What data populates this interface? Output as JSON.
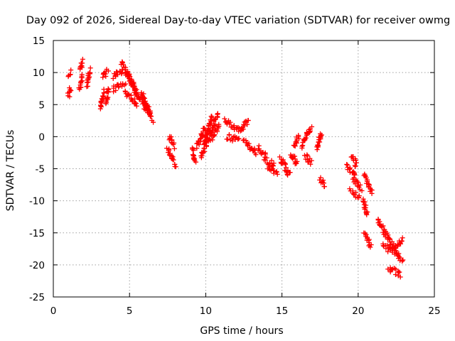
{
  "chart_data": {
    "type": "scatter",
    "title": "Day 092 of 2026, Sidereal Day-to-day VTEC variation (SDTVAR) for receiver owmg",
    "xlabel": "GPS time / hours",
    "ylabel": "SDTVAR / TECUs",
    "xlim": [
      0,
      25
    ],
    "ylim": [
      -25,
      15
    ],
    "xticks": [
      0,
      5,
      10,
      15,
      20,
      25
    ],
    "yticks": [
      -25,
      -20,
      -15,
      -10,
      -5,
      0,
      5,
      10,
      15
    ],
    "grid": true,
    "marker": "plus",
    "color": "#ff0000",
    "segments": [
      {
        "x": [
          1.0,
          1.1
        ],
        "y": [
          6.5,
          7.5
        ]
      },
      {
        "x": [
          1.0,
          1.1
        ],
        "y": [
          9.8,
          10.0
        ]
      },
      {
        "x": [
          1.7,
          1.9
        ],
        "y": [
          7.5,
          9.5
        ]
      },
      {
        "x": [
          1.8,
          1.9
        ],
        "y": [
          10.5,
          12.0
        ]
      },
      {
        "x": [
          2.2,
          2.4
        ],
        "y": [
          8.0,
          10.5
        ]
      },
      {
        "x": [
          3.1,
          3.3
        ],
        "y": [
          4.5,
          7.0
        ]
      },
      {
        "x": [
          3.2,
          3.6
        ],
        "y": [
          9.5,
          10.2
        ]
      },
      {
        "x": [
          3.5,
          3.6
        ],
        "y": [
          5.5,
          7.5
        ]
      },
      {
        "x": [
          3.9,
          4.6
        ],
        "y": [
          9.5,
          10.3
        ]
      },
      {
        "x": [
          3.9,
          4.7
        ],
        "y": [
          7.3,
          8.5
        ]
      },
      {
        "x": [
          4.5,
          5.3
        ],
        "y": [
          11.5,
          8.0
        ]
      },
      {
        "x": [
          4.8,
          5.5
        ],
        "y": [
          10.0,
          6.5
        ]
      },
      {
        "x": [
          4.7,
          5.5
        ],
        "y": [
          7.0,
          5.0
        ]
      },
      {
        "x": [
          5.3,
          6.2
        ],
        "y": [
          7.5,
          4.0
        ]
      },
      {
        "x": [
          5.8,
          6.5
        ],
        "y": [
          7.0,
          2.5
        ]
      },
      {
        "x": [
          6.0,
          6.4
        ],
        "y": [
          4.5,
          3.5
        ]
      },
      {
        "x": [
          7.5,
          8.0
        ],
        "y": [
          -2.0,
          -4.5
        ]
      },
      {
        "x": [
          7.6,
          7.9
        ],
        "y": [
          0.0,
          -1.5
        ]
      },
      {
        "x": [
          9.1,
          9.3
        ],
        "y": [
          -2.0,
          -4.0
        ]
      },
      {
        "x": [
          9.4,
          10.0
        ],
        "y": [
          -1.5,
          1.5
        ]
      },
      {
        "x": [
          9.7,
          10.8
        ],
        "y": [
          -3.0,
          3.5
        ]
      },
      {
        "x": [
          9.9,
          10.4
        ],
        "y": [
          -1.0,
          3.0
        ]
      },
      {
        "x": [
          10.3,
          10.9
        ],
        "y": [
          -0.5,
          2.0
        ]
      },
      {
        "x": [
          11.2,
          12.2
        ],
        "y": [
          2.5,
          1.0
        ]
      },
      {
        "x": [
          11.4,
          12.2
        ],
        "y": [
          0.0,
          -0.5
        ]
      },
      {
        "x": [
          12.3,
          12.8
        ],
        "y": [
          1.0,
          2.5
        ]
      },
      {
        "x": [
          12.5,
          13.3
        ],
        "y": [
          -0.5,
          -2.5
        ]
      },
      {
        "x": [
          13.4,
          13.9
        ],
        "y": [
          -1.5,
          -3.0
        ]
      },
      {
        "x": [
          13.8,
          14.5
        ],
        "y": [
          -3.5,
          -4.5
        ]
      },
      {
        "x": [
          14.1,
          14.7
        ],
        "y": [
          -5.0,
          -6.0
        ]
      },
      {
        "x": [
          14.9,
          15.5
        ],
        "y": [
          -3.5,
          -6.0
        ]
      },
      {
        "x": [
          15.6,
          16.0
        ],
        "y": [
          -2.5,
          -4.5
        ]
      },
      {
        "x": [
          15.8,
          16.1
        ],
        "y": [
          -1.5,
          0.0
        ]
      },
      {
        "x": [
          16.3,
          16.9
        ],
        "y": [
          -1.5,
          1.5
        ]
      },
      {
        "x": [
          16.5,
          16.9
        ],
        "y": [
          -3.0,
          -4.0
        ]
      },
      {
        "x": [
          17.3,
          17.6
        ],
        "y": [
          -2.0,
          0.5
        ]
      },
      {
        "x": [
          17.5,
          17.8
        ],
        "y": [
          -6.5,
          -7.5
        ]
      },
      {
        "x": [
          19.2,
          19.8
        ],
        "y": [
          -4.5,
          -6.0
        ]
      },
      {
        "x": [
          19.6,
          19.9
        ],
        "y": [
          -3.0,
          -4.5
        ]
      },
      {
        "x": [
          19.7,
          20.2
        ],
        "y": [
          -6.5,
          -8.0
        ]
      },
      {
        "x": [
          19.5,
          20.1
        ],
        "y": [
          -8.5,
          -9.5
        ]
      },
      {
        "x": [
          20.4,
          20.9
        ],
        "y": [
          -6.0,
          -8.5
        ]
      },
      {
        "x": [
          20.3,
          20.6
        ],
        "y": [
          -10.0,
          -12.0
        ]
      },
      {
        "x": [
          20.4,
          20.8
        ],
        "y": [
          -15.0,
          -17.0
        ]
      },
      {
        "x": [
          21.3,
          22.0
        ],
        "y": [
          -13.0,
          -16.0
        ]
      },
      {
        "x": [
          21.6,
          22.4
        ],
        "y": [
          -17.0,
          -18.0
        ]
      },
      {
        "x": [
          22.0,
          22.9
        ],
        "y": [
          -16.0,
          -19.5
        ]
      },
      {
        "x": [
          22.3,
          22.9
        ],
        "y": [
          -17.5,
          -16.0
        ]
      },
      {
        "x": [
          22.0,
          22.8
        ],
        "y": [
          -20.5,
          -21.5
        ]
      }
    ]
  }
}
